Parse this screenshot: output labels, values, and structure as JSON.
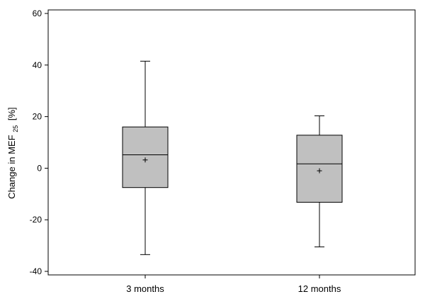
{
  "chart_data": {
    "type": "box",
    "categories": [
      "3 months",
      "12 months"
    ],
    "ylabel": "Change in MEF",
    "ylabel_subscript": "25",
    "ylabel_unit": "[%]",
    "ylim": [
      -40,
      60
    ],
    "yticks": [
      -40,
      -20,
      0,
      20,
      40,
      60
    ],
    "ytick_labels": [
      "-40",
      "-20",
      "0",
      "20",
      "40",
      "60"
    ],
    "box_color": "#c0c0c0",
    "line_color": "#000000",
    "boxes": [
      {
        "category": "3 months",
        "whisker_low": -33.5,
        "q1": -7.5,
        "median": 5.2,
        "mean": 3.2,
        "q3": 16.0,
        "whisker_high": 41.5
      },
      {
        "category": "12 months",
        "whisker_low": -30.5,
        "q1": -13.2,
        "median": 1.7,
        "mean": -1.0,
        "q3": 12.8,
        "whisker_high": 20.3
      }
    ]
  }
}
